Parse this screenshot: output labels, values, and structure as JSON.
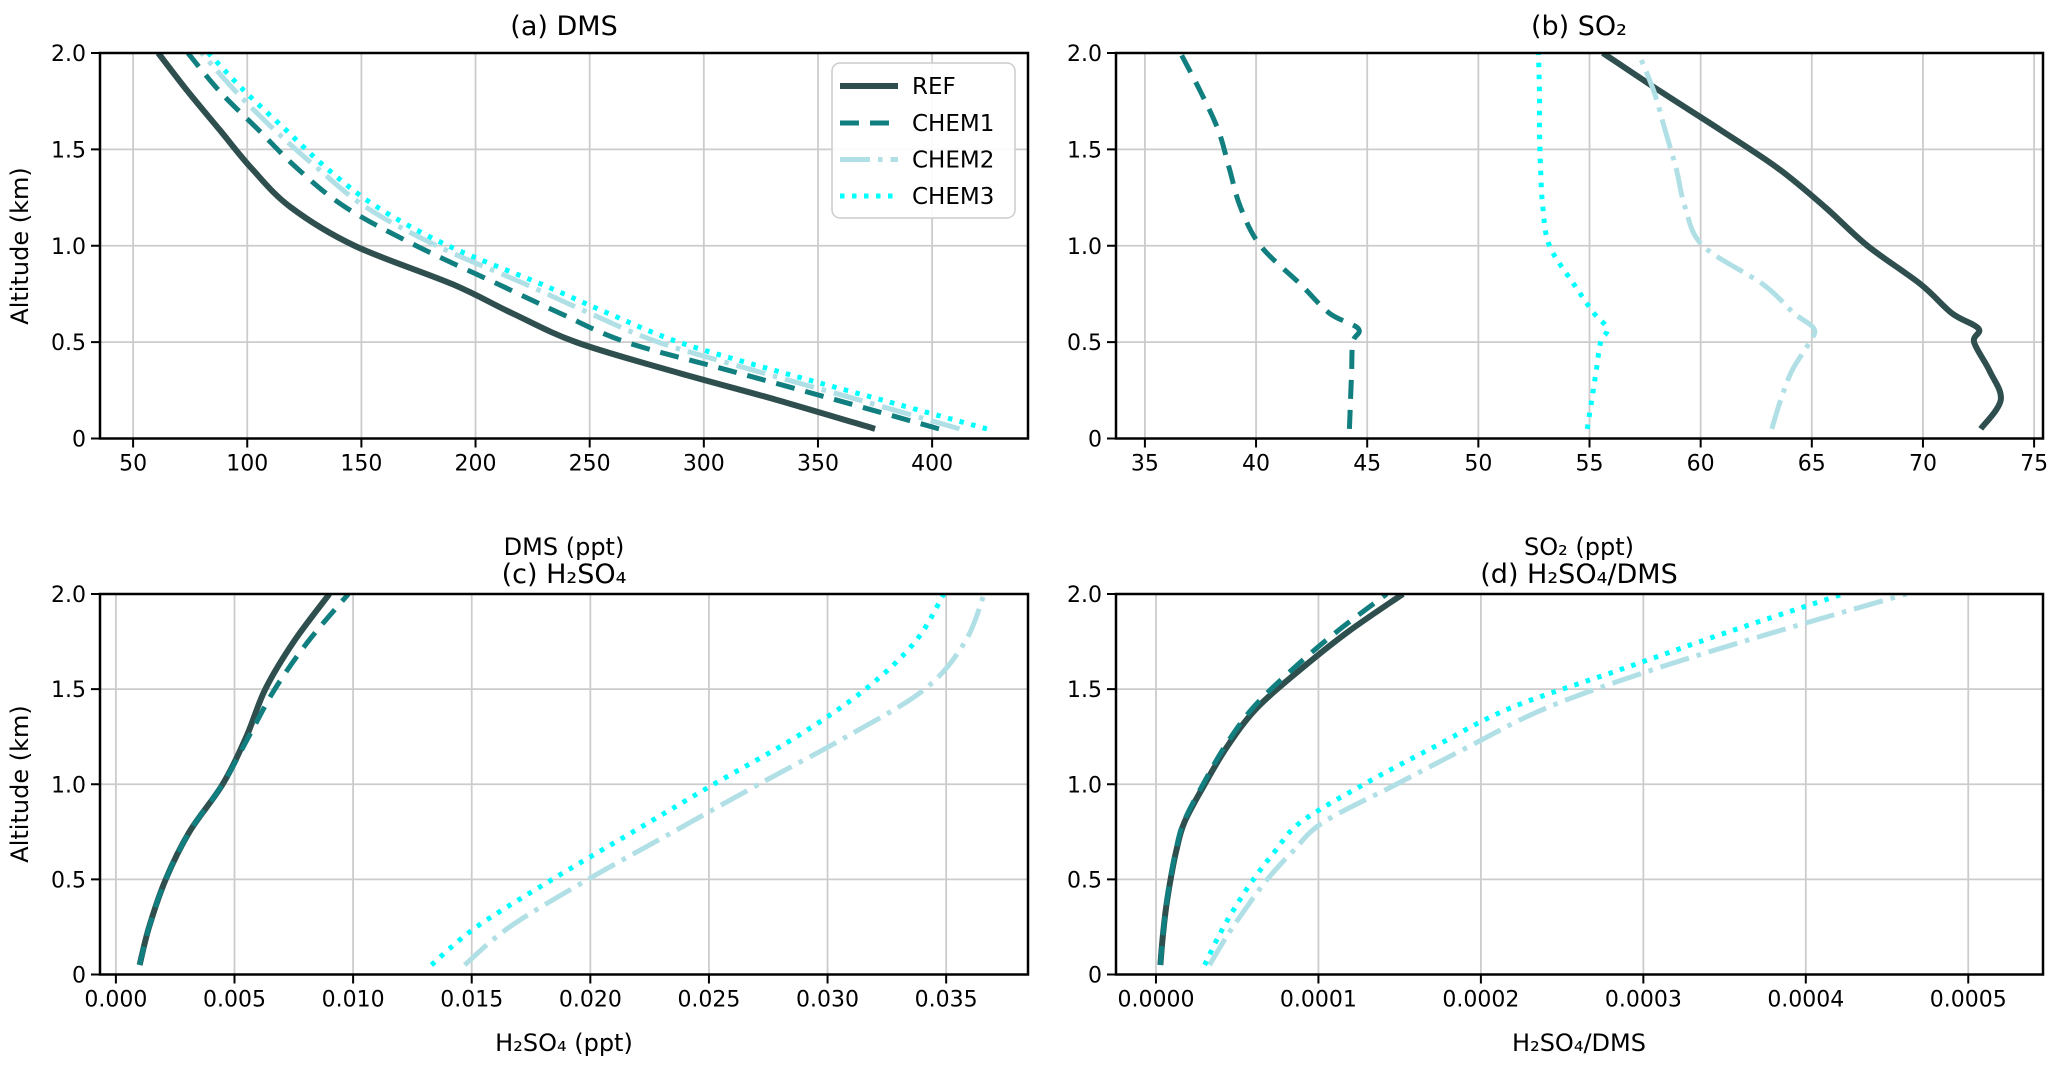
{
  "figure": {
    "background": "#ffffff",
    "text_color": "#000000",
    "grid_color": "#cccccc"
  },
  "legend": {
    "entries": [
      {
        "label": "REF",
        "color": "#2f4f4f",
        "linestyle": "solid",
        "lw": 6
      },
      {
        "label": "CHEM1",
        "color": "#117f7f",
        "linestyle": "dashed",
        "lw": 5
      },
      {
        "label": "CHEM2",
        "color": "#b0e0e6",
        "linestyle": "dashdot",
        "lw": 5
      },
      {
        "label": "CHEM3",
        "color": "#00ffff",
        "linestyle": "dotted",
        "lw": 5
      }
    ]
  },
  "chart_data": [
    {
      "type": "line",
      "title": "(a) DMS",
      "xlabel": "DMS (ppt)",
      "ylabel": "Altitude (km)",
      "xlim": [
        35.5,
        442
      ],
      "ylim": [
        0,
        2
      ],
      "xticks": [
        50,
        100,
        150,
        200,
        250,
        300,
        350,
        400
      ],
      "xtick_decimals": 0,
      "yticks": [
        0,
        0.5,
        1,
        1.5,
        2
      ],
      "ytick_labels": [
        "0",
        "0.5",
        "1.0",
        "1.5",
        "2.0"
      ],
      "grid": true,
      "legend_position": "upper right",
      "altitudes": [
        0.05,
        0.2,
        0.35,
        0.5,
        0.65,
        0.8,
        1.0,
        1.2,
        1.4,
        1.6,
        1.8,
        2.0
      ],
      "series": [
        {
          "name": "REF",
          "values": [
            375,
            332,
            286,
            244,
            216,
            190,
            147,
            119,
            102,
            88,
            74,
            61
          ]
        },
        {
          "name": "CHEM1",
          "values": [
            403,
            358,
            312,
            266,
            237,
            210,
            174,
            143,
            122,
            105,
            88,
            74
          ]
        },
        {
          "name": "CHEM2",
          "values": [
            412,
            368,
            323,
            280,
            250,
            222,
            183,
            152,
            131,
            112,
            95,
            80
          ]
        },
        {
          "name": "CHEM3",
          "values": [
            424,
            378,
            332,
            289,
            258,
            229,
            188,
            157,
            135,
            117,
            99,
            83
          ]
        }
      ]
    },
    {
      "type": "line",
      "title": "(b) SO₂",
      "xlabel": "SO₂ (ppt)",
      "ylabel": "",
      "xlim": [
        33.7,
        75.4
      ],
      "ylim": [
        0,
        2
      ],
      "xticks": [
        35,
        40,
        45,
        50,
        55,
        60,
        65,
        70,
        75
      ],
      "xtick_decimals": 0,
      "yticks": [
        0,
        0.5,
        1,
        1.5,
        2
      ],
      "ytick_labels": [
        "0",
        "0.5",
        "1.0",
        "1.5",
        "2.0"
      ],
      "grid": true,
      "altitudes": [
        0.05,
        0.2,
        0.35,
        0.5,
        0.57,
        0.65,
        0.8,
        1.0,
        1.2,
        1.4,
        1.6,
        1.8,
        2.0
      ],
      "series": [
        {
          "name": "REF",
          "values": [
            72.6,
            73.5,
            73.0,
            72.3,
            72.5,
            71.3,
            69.9,
            67.5,
            65.6,
            63.5,
            60.9,
            58.2,
            55.6
          ]
        },
        {
          "name": "CHEM1",
          "values": [
            44.2,
            44.25,
            44.3,
            44.35,
            44.6,
            43.3,
            42.0,
            40.2,
            39.3,
            38.8,
            38.3,
            37.5,
            36.6
          ]
        },
        {
          "name": "CHEM2",
          "values": [
            63.2,
            63.6,
            64.1,
            64.9,
            65.1,
            64.2,
            62.8,
            60.1,
            59.3,
            58.9,
            58.4,
            57.9,
            57.2
          ]
        },
        {
          "name": "CHEM3",
          "values": [
            54.9,
            55.1,
            55.3,
            55.5,
            55.8,
            55.2,
            54.3,
            53.2,
            52.9,
            52.8,
            52.75,
            52.75,
            52.7
          ]
        }
      ]
    },
    {
      "type": "line",
      "title": "(c) H₂SO₄",
      "xlabel": "H₂SO₄ (ppt)",
      "ylabel": "Altitude (km)",
      "xlim": [
        -0.00067,
        0.03845
      ],
      "ylim": [
        0,
        2
      ],
      "xticks": [
        0.0,
        0.005,
        0.01,
        0.015,
        0.02,
        0.025,
        0.03,
        0.035
      ],
      "xtick_decimals": 3,
      "yticks": [
        0,
        0.5,
        1,
        1.5,
        2
      ],
      "ytick_labels": [
        "0",
        "0.5",
        "1.0",
        "1.5",
        "2.0"
      ],
      "grid": true,
      "altitudes": [
        0.05,
        0.25,
        0.5,
        0.75,
        1.0,
        1.25,
        1.5,
        1.75,
        2.0
      ],
      "series": [
        {
          "name": "REF",
          "values": [
            0.001,
            0.0014,
            0.0021,
            0.0031,
            0.0045,
            0.0055,
            0.0063,
            0.0075,
            0.009
          ]
        },
        {
          "name": "CHEM1",
          "values": [
            0.001,
            0.0014,
            0.0021,
            0.0031,
            0.0045,
            0.0056,
            0.0067,
            0.0081,
            0.0098
          ]
        },
        {
          "name": "CHEM2",
          "values": [
            0.0147,
            0.0166,
            0.0199,
            0.0235,
            0.0271,
            0.0308,
            0.0341,
            0.0358,
            0.0366
          ]
        },
        {
          "name": "CHEM3",
          "values": [
            0.0133,
            0.0152,
            0.0184,
            0.0218,
            0.0252,
            0.0287,
            0.0316,
            0.0337,
            0.0349
          ]
        }
      ]
    },
    {
      "type": "line",
      "title": "(d) H₂SO₄/DMS",
      "xlabel": "H₂SO₄/DMS",
      "ylabel": "",
      "xlim": [
        -2.46e-05,
        0.000546
      ],
      "ylim": [
        0,
        2
      ],
      "xticks": [
        0.0,
        0.0001,
        0.0002,
        0.0003,
        0.0004,
        0.0005
      ],
      "xtick_decimals": 4,
      "yticks": [
        0,
        0.5,
        1,
        1.5,
        2
      ],
      "ytick_labels": [
        "0",
        "0.5",
        "1.0",
        "1.5",
        "2.0"
      ],
      "grid": true,
      "altitudes": [
        0.05,
        0.2,
        0.35,
        0.5,
        0.65,
        0.8,
        1.0,
        1.2,
        1.4,
        1.6,
        1.8,
        2.0
      ],
      "series": [
        {
          "name": "REF",
          "values": [
            2.7e-06,
            4.2e-06,
            6.2e-06,
            9e-06,
            1.25e-05,
            1.75e-05,
            3e-05,
            4.4e-05,
            6.2e-05,
            8.85e-05,
            0.000118,
            0.000152
          ]
        },
        {
          "name": "CHEM1",
          "values": [
            2.7e-06,
            4.2e-06,
            6.1e-06,
            8.8e-06,
            1.22e-05,
            1.7e-05,
            2.9e-05,
            4.25e-05,
            5.95e-05,
            8.35e-05,
            0.000111,
            0.000142
          ]
        },
        {
          "name": "CHEM2",
          "values": [
            3.3e-05,
            4.35e-05,
            5.55e-05,
            6.85e-05,
            8.45e-05,
            0.000103,
            0.000148,
            0.000193,
            0.00024,
            0.000305,
            0.000381,
            0.000462
          ]
        },
        {
          "name": "CHEM3",
          "values": [
            3e-05,
            3.85e-05,
            4.85e-05,
            6e-05,
            7.35e-05,
            8.9e-05,
            0.000128,
            0.000172,
            0.000218,
            0.000285,
            0.000352,
            0.000423
          ]
        }
      ]
    }
  ]
}
